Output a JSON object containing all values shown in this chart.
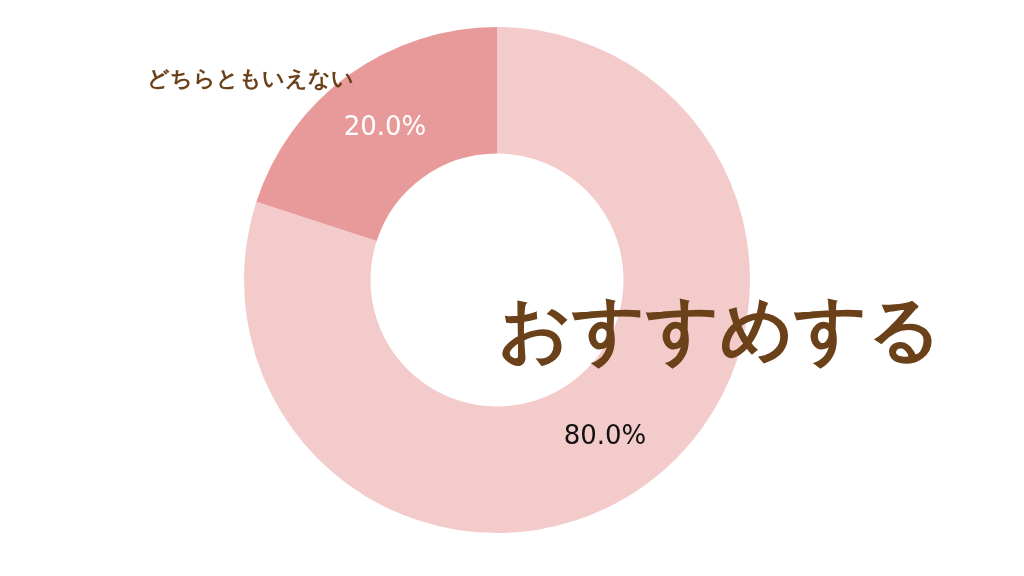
{
  "chart_data": {
    "type": "donut",
    "categories": [
      "おすすめする",
      "どちらともいえない"
    ],
    "values": [
      80,
      20
    ],
    "colors": [
      "#f4cbcb",
      "#e89a9a"
    ],
    "value_labels": [
      "80.0%",
      "20.0%"
    ],
    "legend": false
  }
}
